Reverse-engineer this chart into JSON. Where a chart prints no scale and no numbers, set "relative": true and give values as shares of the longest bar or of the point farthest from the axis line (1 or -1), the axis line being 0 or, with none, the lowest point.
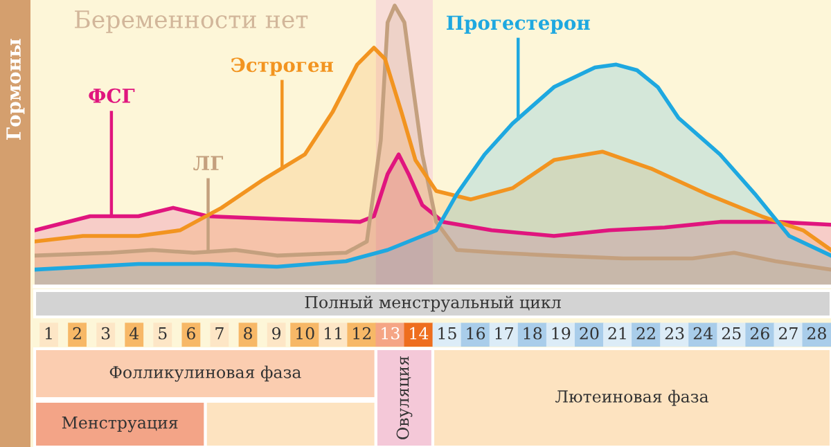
{
  "chart_data": {
    "type": "area",
    "title": "Беременности нет",
    "ylabel": "Гормоны",
    "relative": true,
    "xlim": [
      0.5,
      28.5
    ],
    "xticks": [
      1,
      2,
      3,
      4,
      5,
      6,
      7,
      8,
      9,
      10,
      11,
      12,
      13,
      14,
      15,
      16,
      17,
      18,
      19,
      20,
      21,
      22,
      23,
      24,
      25,
      26,
      27,
      28
    ],
    "series": [
      {
        "name": "ФСГ",
        "color": "#e0157e",
        "x": [
          0.5,
          2.45,
          4.15,
          5.37,
          6.59,
          9.02,
          11.94,
          12.43,
          12.91,
          13.3,
          13.65,
          14.13,
          14.86,
          16.57,
          18.76,
          20.7,
          22.65,
          24.6,
          26.55,
          28.5
        ],
        "values": [
          0.2,
          0.25,
          0.25,
          0.28,
          0.25,
          0.24,
          0.23,
          0.25,
          0.4,
          0.47,
          0.4,
          0.29,
          0.23,
          0.2,
          0.18,
          0.2,
          0.21,
          0.23,
          0.23,
          0.22
        ]
      },
      {
        "name": "ЛГ",
        "color": "#c4a07e",
        "x": [
          0.5,
          3.18,
          4.64,
          6.1,
          7.56,
          9.02,
          11.45,
          12.18,
          12.67,
          12.91,
          13.16,
          13.5,
          13.79,
          14.13,
          14.62,
          15.35,
          16.81,
          18.76,
          21.19,
          23.63,
          25.09,
          26.55,
          28.5
        ],
        "values": [
          0.11,
          0.12,
          0.13,
          0.12,
          0.13,
          0.11,
          0.12,
          0.16,
          0.52,
          0.94,
          1.0,
          0.94,
          0.72,
          0.47,
          0.23,
          0.13,
          0.12,
          0.11,
          0.1,
          0.1,
          0.12,
          0.09,
          0.06
        ]
      },
      {
        "name": "Эстроген",
        "color": "#f29420",
        "x": [
          0.5,
          2.2,
          4.15,
          5.61,
          7.07,
          8.53,
          10.0,
          10.97,
          11.84,
          12.43,
          12.82,
          13.4,
          13.89,
          14.62,
          15.84,
          17.3,
          18.76,
          20.46,
          22.17,
          24.11,
          26.06,
          27.52,
          28.5
        ],
        "values": [
          0.16,
          0.18,
          0.18,
          0.2,
          0.28,
          0.38,
          0.47,
          0.62,
          0.79,
          0.85,
          0.81,
          0.62,
          0.45,
          0.34,
          0.31,
          0.35,
          0.45,
          0.48,
          0.42,
          0.33,
          0.25,
          0.2,
          0.13
        ]
      },
      {
        "name": "Прогестерон",
        "color": "#1ea8e0",
        "x": [
          0.5,
          4.15,
          6.59,
          9.02,
          11.45,
          12.91,
          13.89,
          14.62,
          15.35,
          16.32,
          17.3,
          18.76,
          20.2,
          20.95,
          21.68,
          22.41,
          23.14,
          24.6,
          25.82,
          27.03,
          28.5
        ],
        "values": [
          0.06,
          0.08,
          0.08,
          0.07,
          0.09,
          0.13,
          0.17,
          0.2,
          0.33,
          0.47,
          0.58,
          0.71,
          0.78,
          0.79,
          0.77,
          0.71,
          0.6,
          0.47,
          0.33,
          0.18,
          0.11
        ]
      }
    ],
    "bands": [
      {
        "axis": "x",
        "from": 12.5,
        "to": 14.5,
        "color": "#f4c8d8"
      }
    ],
    "annotations": [
      "Полный менструальный цикл",
      "Фолликулиновая фаза",
      "Овуляция",
      "Лютеиновая фаза",
      "Менструация"
    ],
    "grid": false,
    "legend": false
  }
}
